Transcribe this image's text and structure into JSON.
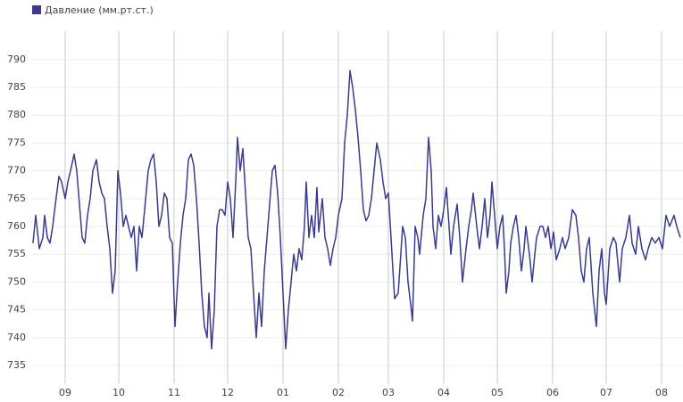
{
  "chart_data": {
    "type": "line",
    "series": [
      {
        "name": "Давление (мм.рт.ст.)",
        "color": "#3b3a8c",
        "values": [
          757,
          762,
          756,
          758,
          762,
          758,
          757,
          760,
          764,
          769,
          768,
          765,
          768,
          770,
          773,
          770,
          764,
          758,
          757,
          762,
          765,
          770,
          772,
          768,
          766,
          765,
          760,
          756,
          748,
          752,
          770,
          766,
          760,
          762,
          760,
          758,
          760,
          752,
          760,
          758,
          763,
          770,
          772,
          773,
          768,
          760,
          762,
          766,
          765,
          758,
          757,
          742,
          750,
          757,
          762,
          765,
          772,
          773,
          771,
          765,
          757,
          748,
          742,
          740,
          748,
          738,
          745,
          760,
          763,
          763,
          762,
          768,
          765,
          758,
          768,
          776,
          770,
          774,
          766,
          758,
          756,
          748,
          740,
          748,
          742,
          752,
          758,
          764,
          770,
          771,
          766,
          758,
          748,
          738,
          745,
          750,
          755,
          752,
          756,
          754,
          760,
          768,
          758,
          762,
          758,
          767,
          759,
          765,
          758,
          756,
          753,
          756,
          758,
          762,
          765,
          775,
          780,
          788,
          785,
          781,
          776,
          770,
          763,
          761,
          762,
          765,
          770,
          775,
          772,
          768,
          765,
          766,
          747,
          748,
          760,
          758,
          750,
          746,
          743,
          760,
          758,
          755,
          762,
          765,
          776,
          770,
          760,
          756,
          762,
          760,
          763,
          767,
          760,
          755,
          760,
          764,
          758,
          750,
          756,
          760,
          763,
          766,
          760,
          756,
          760,
          765,
          758,
          762,
          768,
          762,
          756,
          760,
          762,
          756,
          748,
          752,
          757,
          760,
          762,
          758,
          752,
          756,
          760,
          755,
          750,
          755,
          758,
          760,
          760,
          758,
          760,
          756,
          759,
          754,
          756,
          758,
          756,
          758,
          763,
          762,
          758,
          752,
          750,
          756,
          758,
          748,
          742,
          752,
          756,
          748,
          746,
          756,
          758,
          757,
          750,
          756,
          758,
          762,
          757,
          755,
          760,
          756,
          754,
          756,
          758,
          757,
          758,
          756,
          762,
          760,
          762,
          760,
          758
        ]
      }
    ],
    "x": [
      -18,
      -16.5,
      -14.5,
      -12.5,
      -11.5,
      -10,
      -8.5,
      -7,
      -5.5,
      -3.5,
      -2,
      0,
      1.5,
      3,
      5,
      6.5,
      8,
      9.5,
      11,
      12.5,
      14,
      15.5,
      17.5,
      19,
      20.5,
      22,
      23.5,
      25,
      26.5,
      28,
      29.5,
      31,
      32.5,
      34,
      35.5,
      37,
      38.5,
      40,
      41.5,
      43,
      44.5,
      46.5,
      48,
      49.5,
      51,
      52.5,
      54,
      55.5,
      57,
      58.5,
      60,
      61.5,
      63,
      64.5,
      66,
      67.5,
      69,
      70.5,
      72,
      73.5,
      75,
      76.5,
      78,
      79.5,
      80.5,
      82,
      83.5,
      85,
      86.5,
      88,
      89.5,
      91,
      92.5,
      94,
      95.5,
      96.5,
      98,
      99.5,
      101,
      102.5,
      104,
      105.5,
      107,
      108.5,
      110,
      111.5,
      113,
      114.5,
      116,
      117.5,
      119,
      120.5,
      122,
      123.5,
      125,
      126.5,
      128,
      129.5,
      131,
      132.5,
      134,
      135,
      136.5,
      138,
      139.5,
      141,
      142,
      144,
      145.5,
      147,
      148.5,
      150,
      151.5,
      153,
      155,
      156.5,
      158,
      159.5,
      161,
      162.5,
      164,
      165.5,
      167,
      168.5,
      170,
      171.5,
      173,
      174.5,
      176.5,
      178,
      179.5,
      181,
      184.5,
      186.5,
      189,
      190.5,
      192,
      193.5,
      194.5,
      196,
      197.5,
      198.5,
      200.5,
      202,
      203.5,
      205,
      206,
      207.5,
      209,
      210.5,
      212,
      213.5,
      215,
      216,
      217.5,
      219.5,
      221,
      222.5,
      224.5,
      226,
      227.5,
      228.5,
      230.5,
      232,
      233.5,
      235,
      236.5,
      238,
      239,
      240.5,
      242,
      243.5,
      245,
      246,
      247,
      248.5,
      249.5,
      251,
      252.5,
      254,
      255.5,
      257,
      258,
      260,
      261.5,
      263,
      264,
      266,
      267.5,
      269,
      270.5,
      272,
      273.5,
      275,
      277,
      278.5,
      280,
      282,
      284,
      286,
      287.5,
      289,
      290.5,
      292,
      293.5,
      295.5,
      297.5,
      299,
      300.5,
      302,
      303,
      305,
      307,
      308.5,
      310.5,
      312,
      314,
      316,
      317.5,
      319.5,
      321,
      323,
      325,
      326.5,
      328.5,
      330.5,
      332.5,
      334.5,
      336.5,
      338.5,
      341,
      342.5,
      344.5
    ],
    "xlim": [
      -19,
      346
    ],
    "xticks": [
      {
        "value": 0,
        "label": "09"
      },
      {
        "value": 30,
        "label": "10"
      },
      {
        "value": 61,
        "label": "11"
      },
      {
        "value": 91,
        "label": "12"
      },
      {
        "value": 122,
        "label": "01"
      },
      {
        "value": 153,
        "label": "02"
      },
      {
        "value": 181,
        "label": "03"
      },
      {
        "value": 212,
        "label": "04"
      },
      {
        "value": 242,
        "label": "05"
      },
      {
        "value": 273,
        "label": "06"
      },
      {
        "value": 303,
        "label": "07"
      },
      {
        "value": 334,
        "label": "08"
      }
    ],
    "ylim": [
      731.8,
      795.1
    ],
    "yticks": [
      735,
      740,
      745,
      750,
      755,
      760,
      765,
      770,
      775,
      780,
      785,
      790
    ],
    "grid": true,
    "legend": "top-left"
  }
}
